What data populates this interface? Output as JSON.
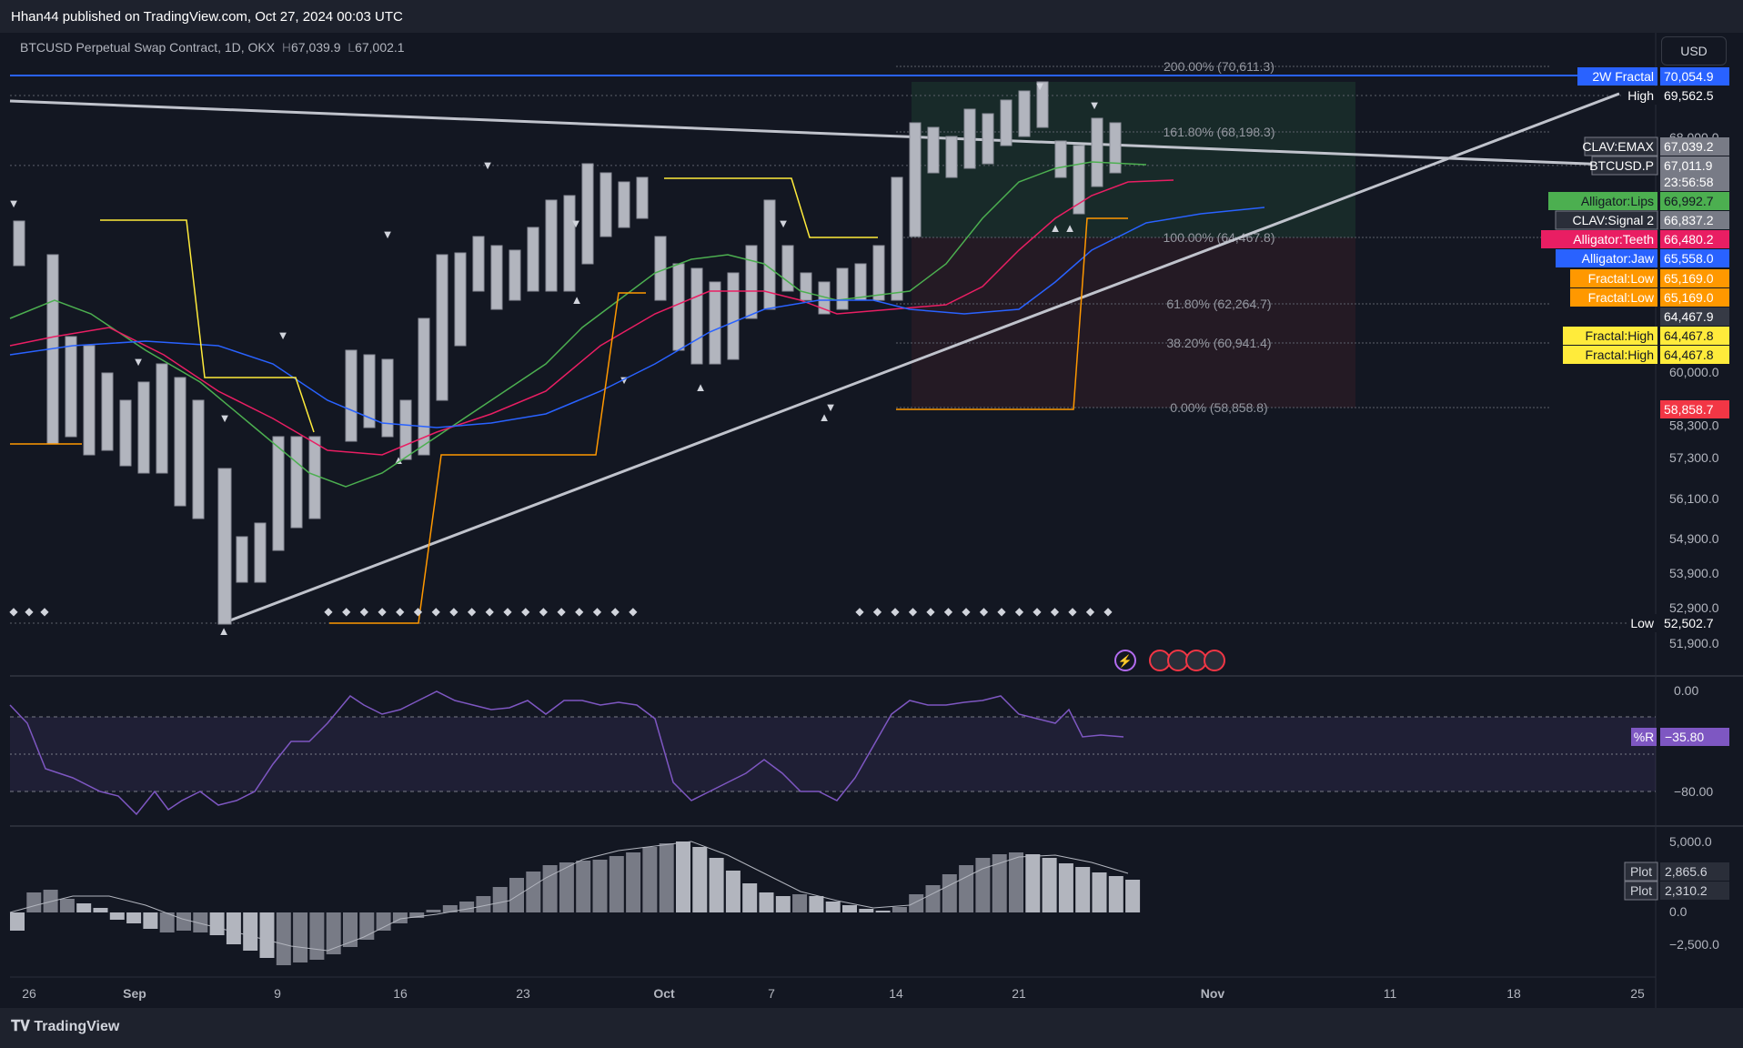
{
  "header": {
    "published": "Hhan44 published on TradingView.com, Oct 27, 2024 00:03 UTC"
  },
  "symbol": {
    "name": "BTCUSD Perpetual Swap Contract, 1D, OKX",
    "h_label": "H",
    "h_value": "67,039.9",
    "l_label": "L",
    "l_value": "67,002.1"
  },
  "currency": "USD",
  "footer": {
    "brand": "TradingView"
  },
  "chart_data": [
    {
      "type": "candlestick",
      "price_axis": [
        "68,000.0",
        "60,000.0",
        "58,300.0",
        "57,300.0",
        "56,100.0",
        "54,900.0",
        "53,900.0",
        "52,900.0",
        "51,900.0"
      ],
      "time_axis": [
        "26",
        "Sep",
        "9",
        "16",
        "23",
        "Oct",
        "7",
        "14",
        "21",
        "Nov",
        "11",
        "18",
        "25"
      ],
      "fib_levels": [
        {
          "label": "200.00% (70,611.3)",
          "value": 70611.3
        },
        {
          "label": "161.80% (68,198.3)",
          "value": 68198.3
        },
        {
          "label": "100.00% (64,467.8)",
          "value": 64467.8
        },
        {
          "label": "61.80% (62,264.7)",
          "value": 62264.7
        },
        {
          "label": "38.20% (60,941.4)",
          "value": 60941.4
        },
        {
          "label": "0.00% (58,858.8)",
          "value": 58858.8
        }
      ],
      "price_tags": [
        {
          "name": "2W Fractal",
          "value": "70,054.9",
          "color": "#2962ff"
        },
        {
          "name": "High",
          "value": "69,562.5",
          "color": "#131722"
        },
        {
          "name": "CLAV:EMAX",
          "value": "67,039.2",
          "color": "#787b86"
        },
        {
          "name": "BTCUSD.P",
          "value": "67,011.9",
          "color": "#787b86"
        },
        {
          "name": "",
          "value": "23:56:58",
          "color": "#787b86"
        },
        {
          "name": "Alligator:Lips",
          "value": "66,992.7",
          "color": "#4caf50"
        },
        {
          "name": "CLAV:Signal 2",
          "value": "66,837.2",
          "color": "#787b86"
        },
        {
          "name": "Alligator:Teeth",
          "value": "66,480.2",
          "color": "#e91e63"
        },
        {
          "name": "Alligator:Jaw",
          "value": "65,558.0",
          "color": "#2962ff"
        },
        {
          "name": "Fractal:Low",
          "value": "65,169.0",
          "color": "#ff9800"
        },
        {
          "name": "Fractal:Low",
          "value": "65,169.0",
          "color": "#ff9800"
        },
        {
          "name": "",
          "value": "64,467.9",
          "color": "#363a45"
        },
        {
          "name": "Fractal:High",
          "value": "64,467.8",
          "color": "#ffeb3b"
        },
        {
          "name": "Fractal:High",
          "value": "64,467.8",
          "color": "#ffeb3b"
        },
        {
          "name": "",
          "value": "58,858.7",
          "color": "#f23645"
        },
        {
          "name": "Low",
          "value": "52,502.7",
          "color": "#131722"
        }
      ]
    },
    {
      "type": "line",
      "name": "%R",
      "value": "−35.80",
      "axis": [
        "0.00",
        "−80.00"
      ]
    },
    {
      "type": "bar",
      "axis": [
        "5,000.0",
        "0.0",
        "−2,500.0"
      ],
      "plots": [
        {
          "name": "Plot",
          "value": "2,865.6"
        },
        {
          "name": "Plot",
          "value": "2,310.2"
        }
      ]
    }
  ]
}
